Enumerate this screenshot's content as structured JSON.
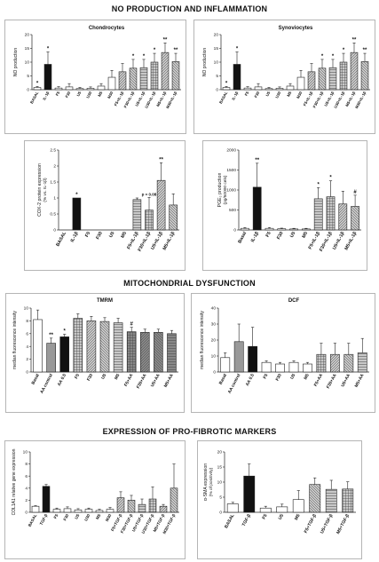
{
  "sections": [
    {
      "title": "NO PRODUCTION AND INFLAMMATION"
    },
    {
      "title": "MITOCHONDRIAL DYSFUNCTION"
    },
    {
      "title": "EXPRESSION OF PRO-FIBROTIC MARKERS"
    }
  ],
  "chart_data": [
    {
      "id": "chondro",
      "type": "bar",
      "title": "Chondrocytes",
      "ylabel": "NO production",
      "ylim": [
        0,
        20
      ],
      "yticks": [
        0,
        5,
        10,
        15,
        20
      ],
      "categories": [
        "BASAL",
        "IL-1β",
        "F5",
        "F30",
        "U5",
        "U30",
        "M5",
        "M30",
        "F5+IL-1β",
        "F30+IL-1β",
        "U5+IL-1β",
        "U30+IL-1β",
        "M5+IL-1β",
        "M30+IL-1β"
      ],
      "values": [
        0.8,
        9.2,
        0.6,
        1.0,
        0.4,
        0.5,
        1.3,
        4.5,
        6.5,
        7.8,
        8.0,
        10.0,
        13.5,
        10.2
      ],
      "errors": [
        0.4,
        4.5,
        0.5,
        1.2,
        0.4,
        0.5,
        0.9,
        2.5,
        3.0,
        3.2,
        3.0,
        3.2,
        3.5,
        3.0
      ],
      "annotations": [
        "*",
        "*",
        "",
        "",
        "",
        "",
        "",
        "",
        "",
        "*",
        "*",
        "*",
        "**",
        "**"
      ],
      "colors": [
        "#ffffff",
        "#111111",
        "#ffffff",
        "#ffffff",
        "#ffffff",
        "#ffffff",
        "#ffffff",
        "#ffffff",
        "#c8c8c8",
        "#c8c8c8",
        "#c8c8c8",
        "#c8c8c8",
        "#c8c8c8",
        "#c8c8c8"
      ]
    },
    {
      "id": "synovio",
      "type": "bar",
      "title": "Synoviocytes",
      "ylabel": "NO production",
      "ylim": [
        0,
        20
      ],
      "yticks": [
        0,
        5,
        10,
        15,
        20
      ],
      "categories": [
        "BASAL",
        "IL-1β",
        "F5",
        "F30",
        "U5",
        "U30",
        "M5",
        "M30",
        "F5+IL-1β",
        "F30+IL-1β",
        "U5+IL-1β",
        "U30+IL-1β",
        "M5+IL-1β",
        "M30+IL-1β"
      ],
      "values": [
        0.8,
        9.2,
        0.6,
        1.0,
        0.4,
        0.5,
        1.3,
        4.5,
        6.5,
        7.8,
        8.0,
        10.0,
        13.5,
        10.2
      ],
      "errors": [
        0.4,
        4.5,
        0.5,
        1.2,
        0.4,
        0.5,
        0.9,
        2.5,
        3.0,
        3.2,
        3.0,
        3.2,
        3.5,
        3.0
      ],
      "annotations": [
        "*",
        "*",
        "",
        "",
        "",
        "",
        "",
        "",
        "",
        "*",
        "*",
        "*",
        "**",
        "**"
      ],
      "colors": [
        "#ffffff",
        "#111111",
        "#ffffff",
        "#ffffff",
        "#ffffff",
        "#ffffff",
        "#ffffff",
        "#ffffff",
        "#c8c8c8",
        "#c8c8c8",
        "#c8c8c8",
        "#c8c8c8",
        "#c8c8c8",
        "#c8c8c8"
      ]
    },
    {
      "id": "cox2",
      "type": "bar",
      "title": "",
      "ylabel": "COX-2 protein expression",
      "ylabel2": "(% vs. IL-1β)",
      "ylim": [
        0,
        2.5
      ],
      "yticks": [
        0.0,
        0.5,
        1.0,
        1.5,
        2.0,
        2.5
      ],
      "categories": [
        "BASAL",
        "IL-1β",
        "F5",
        "F30",
        "U5",
        "M5",
        "F5+IL-1β",
        "F30+IL-1β",
        "U5+IL-1β",
        "M5+IL-1β"
      ],
      "values": [
        0,
        1.0,
        0,
        0,
        0,
        0,
        0.95,
        0.62,
        1.55,
        0.78
      ],
      "errors": [
        0,
        0,
        0,
        0,
        0,
        0,
        0.05,
        0.4,
        0.55,
        0.35
      ],
      "annotations": [
        "",
        "*",
        "",
        "",
        "",
        "",
        "",
        "p = 0.08",
        "**",
        ""
      ],
      "colors": [
        "#ffffff",
        "#111111",
        "#ffffff",
        "#ffffff",
        "#ffffff",
        "#ffffff",
        "#c8c8c8",
        "#c8c8c8",
        "#c8c8c8",
        "#c8c8c8"
      ]
    },
    {
      "id": "pge2",
      "type": "bar",
      "title": "",
      "ylabel": "PGE₂ production",
      "ylabel2": "(pg/50000 cels)",
      "ylim": [
        0,
        2000
      ],
      "yticks": [
        0,
        500,
        1000,
        1500,
        2000
      ],
      "categories": [
        "Basal",
        "IL-1β",
        "F5",
        "F30",
        "U5",
        "M5",
        "F5+IL-1β",
        "F30+IL-1β",
        "U5+IL-1β",
        "M5+IL-1β"
      ],
      "values": [
        40,
        1070,
        40,
        30,
        25,
        25,
        780,
        830,
        650,
        590
      ],
      "errors": [
        20,
        600,
        20,
        15,
        15,
        15,
        280,
        400,
        320,
        280
      ],
      "annotations": [
        "",
        "**",
        "",
        "",
        "",
        "",
        "*",
        "*",
        "",
        "#"
      ],
      "colors": [
        "#ffffff",
        "#111111",
        "#ffffff",
        "#ffffff",
        "#ffffff",
        "#ffffff",
        "#c8c8c8",
        "#c8c8c8",
        "#c8c8c8",
        "#c8c8c8"
      ]
    },
    {
      "id": "tmrm",
      "type": "bar",
      "title": "TMRM",
      "ylabel": "median fluorescence intensity",
      "ylim": [
        0,
        10
      ],
      "yticks": [
        0,
        2,
        4,
        6,
        8,
        10
      ],
      "categories": [
        "Basal",
        "AA control",
        "AA 0.5",
        "F5",
        "F30",
        "U5",
        "M5",
        "F5+AA",
        "F30+AA",
        "U5+AA",
        "M5+AA"
      ],
      "values": [
        8.2,
        4.5,
        5.5,
        8.4,
        8.0,
        7.9,
        7.7,
        6.3,
        6.2,
        6.2,
        6.0
      ],
      "errors": [
        1.5,
        0.8,
        0.4,
        0.7,
        0.7,
        0.6,
        0.7,
        0.7,
        0.5,
        0.5,
        0.5
      ],
      "annotations": [
        "",
        "**",
        "*",
        "",
        "",
        "",
        "",
        "#",
        "",
        "",
        ""
      ],
      "colors": [
        "#ffffff",
        "#999999",
        "#111111",
        "#c8c8c8",
        "#c8c8c8",
        "#c8c8c8",
        "#c8c8c8",
        "#888888",
        "#888888",
        "#888888",
        "#888888"
      ]
    },
    {
      "id": "dcf",
      "type": "bar",
      "title": "DCF",
      "ylabel": "median fluorescence intensity",
      "ylim": [
        0,
        40
      ],
      "yticks": [
        0,
        10,
        20,
        30,
        40
      ],
      "categories": [
        "Basal",
        "AA control",
        "AA 0.5",
        "F5",
        "F30",
        "U5",
        "M5",
        "F5+AA",
        "F30+AA",
        "U5+AA",
        "M5+AA"
      ],
      "values": [
        9,
        19,
        16,
        6,
        5,
        6,
        5,
        11,
        11,
        11,
        12
      ],
      "errors": [
        3,
        11,
        12,
        1,
        1,
        1,
        1,
        7,
        7,
        7,
        9
      ],
      "annotations": [
        "",
        "",
        "",
        "",
        "",
        "",
        "",
        "",
        "",
        "",
        ""
      ],
      "colors": [
        "#ffffff",
        "#999999",
        "#111111",
        "#ffffff",
        "#ffffff",
        "#ffffff",
        "#ffffff",
        "#c8c8c8",
        "#c8c8c8",
        "#c8c8c8",
        "#c8c8c8"
      ]
    },
    {
      "id": "col1a1",
      "type": "bar",
      "title": "",
      "ylabel": "COL1A1 relative gene expression",
      "ylim": [
        0,
        10
      ],
      "yticks": [
        0,
        2,
        4,
        6,
        8,
        10
      ],
      "categories": [
        "BASAL",
        "TGF-β",
        "F5",
        "F30",
        "U5",
        "U30",
        "M5",
        "M30",
        "F5+TGF-β",
        "F30+TGF-β",
        "U5+TGF-β",
        "U30+TGF-β",
        "M5+TGF-β",
        "M30+TGF-β"
      ],
      "values": [
        1.0,
        4.3,
        0.5,
        0.6,
        0.4,
        0.5,
        0.3,
        0.5,
        2.4,
        2.0,
        1.3,
        2.2,
        1.0,
        4.0
      ],
      "errors": [
        0.1,
        0.3,
        0.2,
        0.3,
        0.2,
        0.2,
        0.2,
        0.3,
        1.0,
        0.8,
        0.9,
        2.0,
        0.3,
        4.0
      ],
      "annotations": [
        "",
        "",
        "",
        "",
        "",
        "",
        "",
        "",
        "",
        "",
        "",
        "",
        "",
        ""
      ],
      "colors": [
        "#ffffff",
        "#111111",
        "#ffffff",
        "#ffffff",
        "#ffffff",
        "#ffffff",
        "#ffffff",
        "#ffffff",
        "#c8c8c8",
        "#c8c8c8",
        "#c8c8c8",
        "#c8c8c8",
        "#c8c8c8",
        "#c8c8c8"
      ]
    },
    {
      "id": "asma",
      "type": "bar",
      "title": "",
      "ylabel": "α-SMA expression",
      "ylabel2": "(% of positivity)",
      "ylim": [
        0,
        20
      ],
      "yticks": [
        0,
        5,
        10,
        15,
        20
      ],
      "categories": [
        "BASAL",
        "TGF-β",
        "F5",
        "U5",
        "M5",
        "F5+TGF-β",
        "U5+TGF-β",
        "M5+TGF-β"
      ],
      "values": [
        2.8,
        12.0,
        1.4,
        1.8,
        4.2,
        9.2,
        7.6,
        7.7
      ],
      "errors": [
        0.5,
        4.0,
        0.6,
        0.9,
        3.0,
        2.2,
        3.0,
        2.4
      ],
      "annotations": [
        "",
        "",
        "",
        "",
        "",
        "",
        "",
        ""
      ],
      "colors": [
        "#ffffff",
        "#111111",
        "#ffffff",
        "#ffffff",
        "#ffffff",
        "#c8c8c8",
        "#c8c8c8",
        "#c8c8c8"
      ]
    }
  ]
}
